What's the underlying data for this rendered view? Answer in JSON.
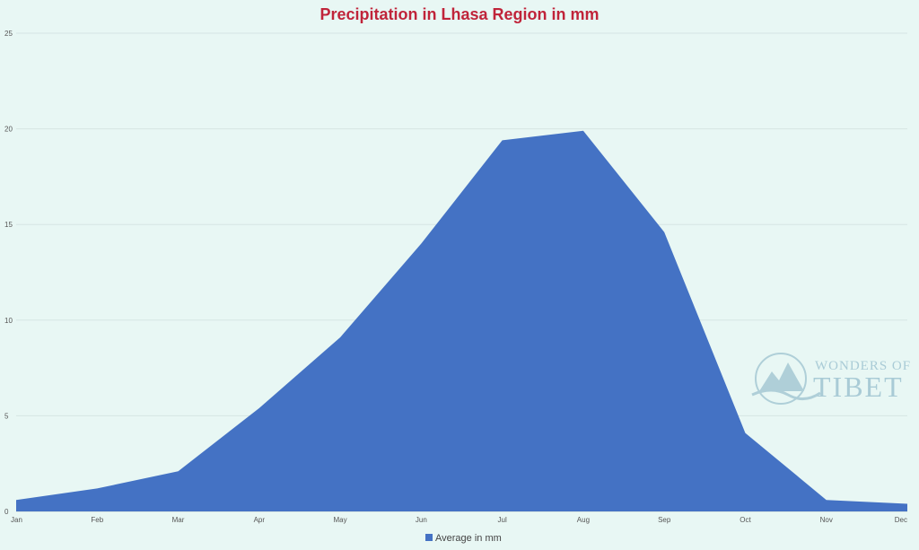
{
  "chart_data": {
    "type": "area",
    "title": "Precipitation in Lhasa Region in mm",
    "xlabel": "",
    "ylabel": "",
    "categories": [
      "Jan",
      "Feb",
      "Mar",
      "Apr",
      "May",
      "Jun",
      "Jul",
      "Aug",
      "Sep",
      "Oct",
      "Nov",
      "Dec"
    ],
    "series": [
      {
        "name": "Average in mm",
        "values": [
          0.6,
          1.2,
          2.1,
          5.4,
          9.1,
          14.0,
          19.4,
          19.9,
          14.6,
          4.1,
          0.6,
          0.4
        ],
        "color": "#4472c4"
      }
    ],
    "ylim": [
      0,
      25
    ],
    "yticks": [
      0,
      5,
      10,
      15,
      20,
      25
    ],
    "grid": true,
    "legend": "bottom",
    "title_color": "#c0243a"
  },
  "watermark": {
    "line1": "WONDERS OF",
    "line2": "TIBET",
    "icon": "mountain-trekker-icon",
    "color": "#a9cbd6"
  }
}
